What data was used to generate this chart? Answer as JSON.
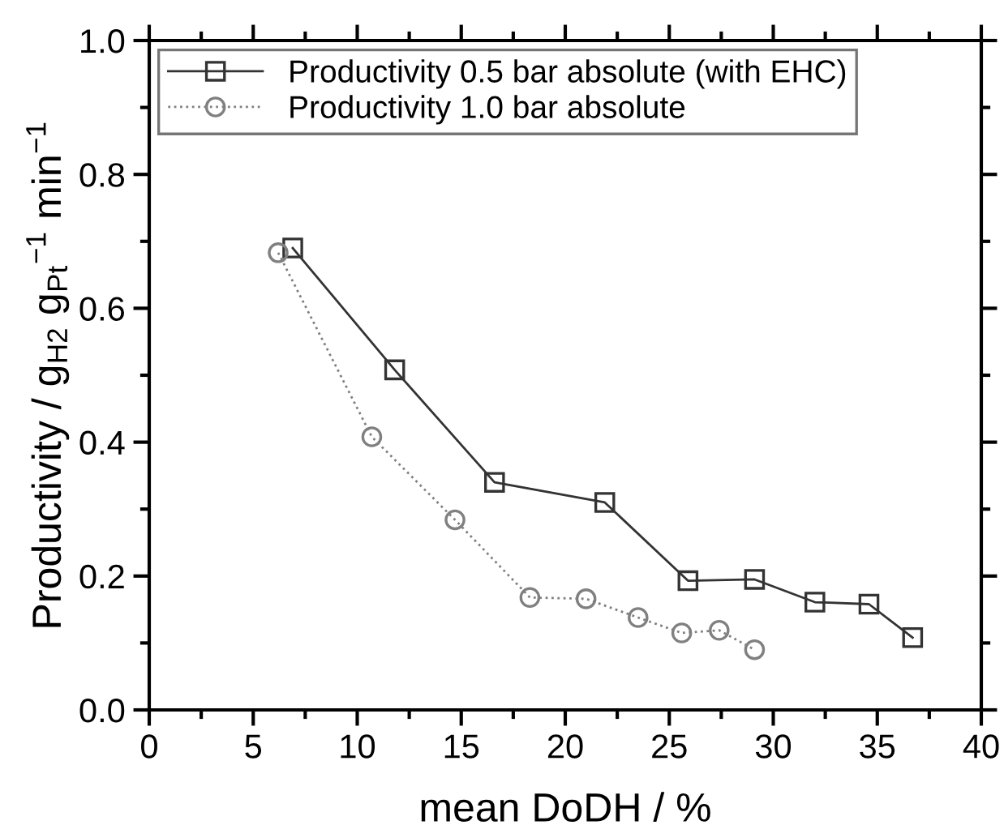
{
  "chart_data": {
    "type": "line",
    "xlabel": "mean DoDH / %",
    "ylabel": "Productivity / g$_{H2}$ g$_{Pt}$$^{−1}$ min$^{−1}$",
    "xlim": [
      0,
      40
    ],
    "ylim": [
      0,
      1.0
    ],
    "xticks": [
      0,
      {
        "value": 2.5,
        "label": null
      },
      5,
      {
        "value": 7.5,
        "label": null
      },
      10,
      {
        "value": 12.5,
        "label": null
      },
      15,
      {
        "value": 17.5,
        "label": null
      },
      20,
      {
        "value": 22.5,
        "label": null
      },
      25,
      {
        "value": 27.5,
        "label": null
      },
      30,
      {
        "value": 32.5,
        "label": null
      },
      35,
      {
        "value": 37.5,
        "label": null
      },
      40
    ],
    "yticks": [
      {
        "value": 0,
        "label": "0.0"
      },
      {
        "value": 0.1,
        "label": null
      },
      0.2,
      {
        "value": 0.3,
        "label": null
      },
      0.4,
      {
        "value": 0.5,
        "label": null
      },
      0.6,
      {
        "value": 0.7,
        "label": null
      },
      0.8,
      {
        "value": 0.9,
        "label": null
      },
      {
        "value": 1.0,
        "label": "1.0"
      }
    ],
    "grid": false,
    "legend": "top left",
    "series": [
      {
        "name": "Productivity 0.5 bar absolute (with EHC)",
        "color": "#333333",
        "marker": "square",
        "line_style": "solid",
        "x": [
          6.9,
          11.8,
          16.6,
          21.9,
          25.9,
          29.1,
          32.0,
          34.6,
          36.7
        ],
        "values": [
          0.69,
          0.508,
          0.34,
          0.31,
          0.193,
          0.195,
          0.161,
          0.158,
          0.108
        ]
      },
      {
        "name": "Productivity 1.0 bar absolute",
        "color": "#808080",
        "marker": "circle",
        "line_style": "dotted",
        "x": [
          6.2,
          10.7,
          14.7,
          18.3,
          21.0,
          23.5,
          25.6,
          27.4,
          29.1
        ],
        "values": [
          0.683,
          0.408,
          0.284,
          0.168,
          0.166,
          0.138,
          0.115,
          0.119,
          0.09
        ]
      }
    ]
  }
}
